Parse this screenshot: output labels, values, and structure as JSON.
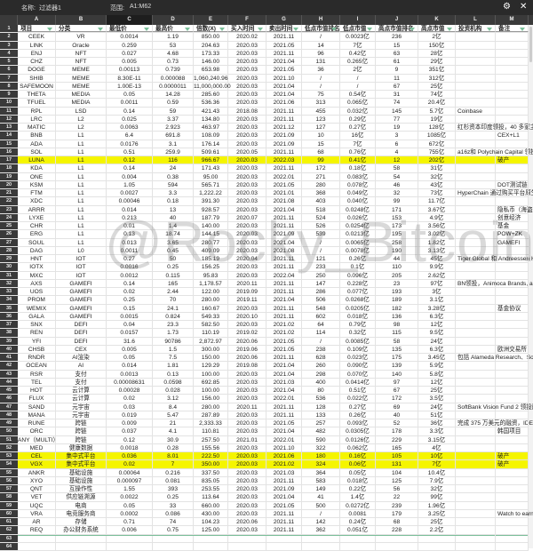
{
  "filter_bar": {
    "name_label": "名称:",
    "name_value": "过滤器1",
    "range_label": "范围:",
    "range_value": "A1:M62",
    "icons": [
      "gear-icon",
      "close-icon"
    ]
  },
  "column_letters": [
    "A",
    "B",
    "C",
    "D",
    "E",
    "F",
    "G",
    "H",
    "I",
    "J",
    "K",
    "L",
    "M"
  ],
  "selected_column": "C",
  "highlight_color": "#f5f500",
  "headers": [
    "项目",
    "分类",
    "最低价",
    "最高价",
    "倍数(X)",
    "买入时间",
    "卖出时间",
    "低点市值排名",
    "低点市值",
    "高点市值排名",
    "高点市值",
    "投资机构",
    "备注"
  ],
  "rows": [
    [
      "CEEK",
      "VR",
      "0.0014",
      "1.19",
      "850.00",
      "2020.02",
      "2021.11",
      "/",
      "0.0023亿",
      "236",
      "2亿",
      "",
      ""
    ],
    [
      "LINK",
      "Oracle",
      "0.259",
      "53",
      "204.63",
      "2020.03",
      "2021.05",
      "14",
      "7亿",
      "15",
      "150亿",
      "",
      ""
    ],
    [
      "ENJ",
      "NFT",
      "0.027",
      "4.68",
      "173.33",
      "2020.03",
      "2021.11",
      "96",
      "0.42亿",
      "63",
      "28亿",
      "",
      ""
    ],
    [
      "CHZ",
      "NFT",
      "0.005",
      "0.73",
      "146.00",
      "2020.03",
      "2021.04",
      "131",
      "0.265亿",
      "61",
      "29亿",
      "",
      ""
    ],
    [
      "DOGE",
      "MEME",
      "0.00113",
      "0.739",
      "653.98",
      "2020.03",
      "2021.05",
      "36",
      "2亿",
      "9",
      "351亿",
      "",
      ""
    ],
    [
      "SHIB",
      "MEME",
      "8.30E-11",
      "0.000088",
      "1,060,240.96",
      "2020.03",
      "2021.10",
      "/",
      "/",
      "11",
      "312亿",
      "",
      ""
    ],
    [
      "SAFEMOON",
      "MEME",
      "1.00E-13",
      "0.0000011",
      "11,000,000.00",
      "2020.03",
      "2021.04",
      "/",
      "/",
      "67",
      "25亿",
      "",
      ""
    ],
    [
      "THETA",
      "MEDIA",
      "0.05",
      "14.28",
      "285.60",
      "2020.03",
      "2021.04",
      "75",
      "0.54亿",
      "31",
      "74亿",
      "",
      ""
    ],
    [
      "TFUEL",
      "MEDIA",
      "0.0011",
      "0.59",
      "536.36",
      "2020.03",
      "2021.06",
      "313",
      "0.065亿",
      "74",
      "20.4亿",
      "",
      ""
    ],
    [
      "RPL",
      "LSD",
      "0.14",
      "59",
      "421.43",
      "2018.08",
      "2021.11",
      "455",
      "0.032亿",
      "145",
      "5.7亿",
      "Coinbase",
      ""
    ],
    [
      "LRC",
      "L2",
      "0.025",
      "3.37",
      "134.80",
      "2020.03",
      "2021.11",
      "123",
      "0.29亿",
      "77",
      "19亿",
      "",
      ""
    ],
    [
      "MATIC",
      "L2",
      "0.0063",
      "2.923",
      "463.97",
      "2020.03",
      "2021.12",
      "127",
      "0.27亿",
      "19",
      "128亿",
      "红杉资本印度领投，40 多家主",
      ""
    ],
    [
      "BNB",
      "L1",
      "6.4",
      "691.8",
      "108.09",
      "2020.03",
      "2021.09",
      "10",
      "16亿",
      "3",
      "1085亿",
      "",
      "CEX+L1"
    ],
    [
      "ADA",
      "L1",
      "0.0176",
      "3.1",
      "176.14",
      "2020.03",
      "2021.09",
      "15",
      "7亿",
      "6",
      "672亿",
      "",
      ""
    ],
    [
      "SOL",
      "L1",
      "0.51",
      "259.9",
      "509.61",
      "2020.05",
      "2021.11",
      "68",
      "0.76亿",
      "4",
      "755亿",
      "a16z和 Polychain Capital 领投,",
      ""
    ],
    [
      "LUNA",
      "L1",
      "0.12",
      "116",
      "966.67",
      "2020.03",
      "2022.03",
      "99",
      "0.41亿",
      "12",
      "202亿",
      "",
      "破产"
    ],
    [
      "KDA",
      "L1",
      "0.14",
      "24",
      "171.43",
      "2020.03",
      "2021.11",
      "172",
      "0.18亿",
      "58",
      "31亿",
      "",
      ""
    ],
    [
      "ONE",
      "L1",
      "0.004",
      "0.38",
      "95.00",
      "2020.03",
      "2022.01",
      "271",
      "0.083亿",
      "54",
      "32亿",
      "",
      ""
    ],
    [
      "KSM",
      "L1",
      "1.05",
      "594",
      "565.71",
      "2020.03",
      "2021.05",
      "280",
      "0.078亿",
      "46",
      "43亿",
      "",
      "DOT测试链"
    ],
    [
      "FTM",
      "L1",
      "0.0027",
      "3.3",
      "1,222.22",
      "2020.03",
      "2021.01",
      "368",
      "0.049亿",
      "32",
      "73亿",
      "HyperChain 通过购买平台原生",
      ""
    ],
    [
      "XDC",
      "L1",
      "0.00046",
      "0.18",
      "391.30",
      "2020.03",
      "2021.08",
      "403",
      "0.040亿",
      "99",
      "11.7亿",
      "",
      ""
    ],
    [
      "ARRR",
      "L1",
      "0.014",
      "13",
      "928.57",
      "2020.03",
      "2021.04",
      "518",
      "0.0248亿",
      "171",
      "3.67亿",
      "",
      "隐私币（海盗"
    ],
    [
      "LYXE",
      "L1",
      "0.213",
      "40",
      "187.79",
      "2020.07",
      "2021.11",
      "524",
      "0.026亿",
      "153",
      "4.9亿",
      "",
      "创意经济"
    ],
    [
      "CHR",
      "L1",
      "0.01",
      "1.4",
      "140.00",
      "2020.03",
      "2021.11",
      "526",
      "0.0254亿",
      "173",
      "3.56亿",
      "",
      "基金"
    ],
    [
      "ERG",
      "L1",
      "0.13",
      "18.74",
      "144.15",
      "2020.03",
      "2021.09",
      "539",
      "0.0213亿",
      "195",
      "3.02亿",
      "",
      "POW+ZK"
    ],
    [
      "SOUL",
      "L1",
      "0.013",
      "3.65",
      "280.77",
      "2020.03",
      "2021.04",
      "/",
      "0.0065亿",
      "258",
      "1.82亿",
      "",
      "GAMEFI"
    ],
    [
      "DAG",
      "L0",
      "0.0011",
      "0.45",
      "409.09",
      "2020.03",
      "2021.08",
      "/",
      "0.0078亿",
      "190",
      "3.13亿",
      "",
      ""
    ],
    [
      "HNT",
      "IOT",
      "0.27",
      "50",
      "185.19",
      "2020.04",
      "2021.11",
      "121",
      "0.26亿",
      "44",
      "45亿",
      "Tiger Global 和 Andreessen Ho",
      ""
    ],
    [
      "IOTX",
      "IOT",
      "0.0016",
      "0.25",
      "156.25",
      "2020.03",
      "2021.11",
      "233",
      "0.1亿",
      "110",
      "9.9亿",
      "",
      ""
    ],
    [
      "MXC",
      "IOT",
      "0.0012",
      "0.115",
      "95.83",
      "2020.03",
      "2022.04",
      "250",
      "0.096亿",
      "205",
      "2.62亿",
      "",
      ""
    ],
    [
      "AXS",
      "GAMEFI",
      "0.14",
      "165",
      "1,178.57",
      "2020.11",
      "2021.11",
      "147",
      "0.228亿",
      "23",
      "97亿",
      "BN领投，Animoca Brands, a16",
      ""
    ],
    [
      "UOS",
      "GAMEFI",
      "0.02",
      "2.44",
      "122.00",
      "2019.09",
      "2021.11",
      "286",
      "0.077亿",
      "193",
      "3亿",
      "",
      ""
    ],
    [
      "PROM",
      "GAMEFI",
      "0.25",
      "70",
      "280.00",
      "2019.11",
      "2021.04",
      "506",
      "0.0268亿",
      "189",
      "3.1亿",
      "",
      ""
    ],
    [
      "WEMIX",
      "GAMEFI",
      "0.15",
      "24.1",
      "160.67",
      "2020.03",
      "2021.11",
      "548",
      "0.0205亿",
      "182",
      "3.28亿",
      "",
      "基金协议"
    ],
    [
      "GALA",
      "GAMEFI",
      "0.0015",
      "0.824",
      "549.33",
      "2020.10",
      "2021.11",
      "602",
      "0.018亿",
      "136",
      "6.3亿",
      "",
      ""
    ],
    [
      "SNX",
      "DEFI",
      "0.04",
      "23.3",
      "582.50",
      "2020.03",
      "2021.02",
      "64",
      "0.79亿",
      "98",
      "12亿",
      "",
      ""
    ],
    [
      "REN",
      "DEFI",
      "0.0157",
      "1.73",
      "110.19",
      "2019.02",
      "2021.02",
      "114",
      "0.32亿",
      "115",
      "9.5亿",
      "",
      ""
    ],
    [
      "YFI",
      "DEFI",
      "31.6",
      "90786",
      "2,872.97",
      "2020.06",
      "2021.05",
      "/",
      "0.0085亿",
      "58",
      "24亿",
      "",
      ""
    ],
    [
      "CHSB",
      "CEX",
      "0.005",
      "1.5",
      "300.00",
      "2019.06",
      "2021.05",
      "238",
      "0.109亿",
      "135",
      "6.3亿",
      "",
      "欧洲交易所"
    ],
    [
      "RNDR",
      "AI渲染",
      "0.05",
      "7.5",
      "150.00",
      "2020.06",
      "2021.11",
      "628",
      "0.023亿",
      "175",
      "3.45亿",
      "包括 Alameda Research、Sola",
      ""
    ],
    [
      "OCEAN",
      "AI",
      "0.014",
      "1.81",
      "129.29",
      "2019.08",
      "2021.04",
      "260",
      "0.090亿",
      "139",
      "5.9亿",
      "",
      ""
    ],
    [
      "RSR",
      "支付",
      "0.0013",
      "0.13",
      "100.00",
      "2020.03",
      "2021.04",
      "298",
      "0.070亿",
      "140",
      "5.8亿",
      "",
      ""
    ],
    [
      "TEL",
      "支付",
      "0.00008631",
      "0.0598",
      "692.85",
      "2020.03",
      "2021.03",
      "400",
      "0.0414亿",
      "97",
      "12亿",
      "",
      ""
    ],
    [
      "HOT",
      "云计算",
      "0.00028",
      "0.028",
      "100.00",
      "2020.03",
      "2021.04",
      "80",
      "0.51亿",
      "67",
      "25亿",
      "",
      ""
    ],
    [
      "FLUX",
      "云计算",
      "0.02",
      "3.12",
      "156.00",
      "2020.03",
      "2022.01",
      "536",
      "0.022亿",
      "172",
      "3.5亿",
      "",
      ""
    ],
    [
      "SAND",
      "元宇宙",
      "0.03",
      "8.4",
      "280.00",
      "2020.11",
      "2021.11",
      "128",
      "0.27亿",
      "69",
      "24亿",
      "SoftBank Vision Fund 2 领投融",
      ""
    ],
    [
      "MANA",
      "元宇宙",
      "0.019",
      "5.47",
      "287.89",
      "2020.03",
      "2021.11",
      "133",
      "0.26亿",
      "40",
      "51亿",
      "",
      ""
    ],
    [
      "RUNE",
      "跨链",
      "0.009",
      "21",
      "2,333.33",
      "2020.03",
      "2021.05",
      "257",
      "0.093亿",
      "52",
      "36亿",
      "完成 375 万美元的融资，IDEO",
      ""
    ],
    [
      "ORC",
      "跨链",
      "0.037",
      "4.1",
      "110.81",
      "2020.03",
      "2021.04",
      "482",
      "0.0305亿",
      "178",
      "3.3亿",
      "",
      "韩国项目"
    ],
    [
      "ANY（MULTI）",
      "跨链",
      "0.12",
      "30.9",
      "257.50",
      "2021.01",
      "2022.01",
      "590",
      "0.0126亿",
      "229",
      "3.15亿",
      "",
      ""
    ],
    [
      "MED",
      "健康数据",
      "0.0018",
      "0.28",
      "155.56",
      "2020.03",
      "2021.10",
      "322",
      "0.062亿",
      "165",
      "4亿",
      "",
      ""
    ],
    [
      "CEL",
      "集中式平台",
      "0.036",
      "8.01",
      "222.50",
      "2020.03",
      "2021.06",
      "180",
      "0.16亿",
      "105",
      "10亿",
      "",
      "破产"
    ],
    [
      "VGX",
      "集中式平台",
      "0.02",
      "7",
      "350.00",
      "2020.03",
      "2021.02",
      "324",
      "0.06亿",
      "131",
      "7亿",
      "",
      "破产"
    ],
    [
      "ANKR",
      "基础设施",
      "0.00064",
      "0.216",
      "337.50",
      "2020.03",
      "2021.03",
      "364",
      "0.05亿",
      "104",
      "10.4亿",
      "",
      ""
    ],
    [
      "XYO",
      "基础设施",
      "0.000097",
      "0.081",
      "835.05",
      "2020.03",
      "2021.11",
      "583",
      "0.018亿",
      "125",
      "7.9亿",
      "",
      ""
    ],
    [
      "QNT",
      "互操作性",
      "1.55",
      "393",
      "253.55",
      "2020.03",
      "2021.09",
      "149",
      "0.22亿",
      "56",
      "32亿",
      "",
      ""
    ],
    [
      "VET",
      "供应链溯源",
      "0.0022",
      "0.25",
      "113.64",
      "2020.03",
      "2021.04",
      "41",
      "1.4亿",
      "22",
      "99亿",
      "",
      ""
    ],
    [
      "UQC",
      "电商",
      "0.05",
      "33",
      "660.00",
      "2020.03",
      "2021.05",
      "500",
      "0.0272亿",
      "239",
      "1.96亿",
      "",
      ""
    ],
    [
      "VRA",
      "电竞服务商",
      "0.0002",
      "0.086",
      "430.00",
      "2020.03",
      "2021.11",
      "/",
      "0.0081",
      "179",
      "3.25亿",
      "",
      "Watch to earn"
    ],
    [
      "AR",
      "存储",
      "0.71",
      "74",
      "104.23",
      "2020.06",
      "2021.11",
      "142",
      "0.24亿",
      "68",
      "25亿",
      "",
      ""
    ],
    [
      "REQ",
      "办公财务系统",
      "0.006",
      "0.75",
      "125.00",
      "2020.03",
      "2021.11",
      "362",
      "0.051亿",
      "228",
      "2.2亿",
      "",
      ""
    ]
  ],
  "highlighted_rows": [
    "LUNA",
    "CEL",
    "VGX"
  ],
  "watermark": "@Rocky_Bitcoin"
}
